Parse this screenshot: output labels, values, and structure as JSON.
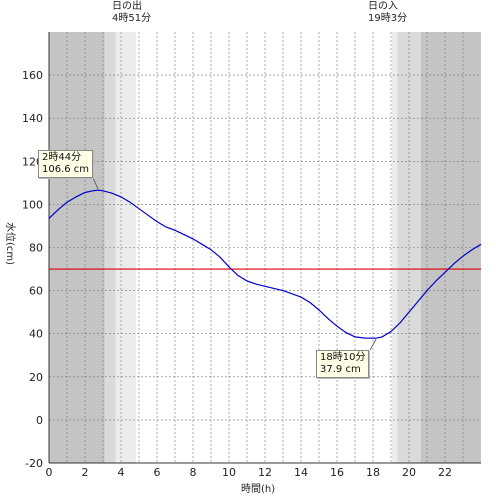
{
  "header": {
    "sunrise_label": "日の出",
    "sunrise_time": "4時51分",
    "sunset_label": "日の入",
    "sunset_time": "19時3分"
  },
  "annotations": {
    "high": {
      "time": "2時44分",
      "level": "106.6 cm"
    },
    "low": {
      "time": "18時10分",
      "level": "37.9 cm"
    }
  },
  "colors": {
    "night": "#c4c4c4",
    "twilight_dark": "#dadada",
    "twilight_light": "#ececec",
    "day": "#ffffff",
    "curve": "#0000cc",
    "reference_line": "#dd0000",
    "grid": "#777777"
  },
  "chart_data": {
    "type": "line",
    "xlabel": "時間(h)",
    "ylabel": "水位(cm)",
    "xlim": [
      0,
      24
    ],
    "ylim": [
      -20,
      180
    ],
    "x_ticks": [
      0,
      2,
      4,
      6,
      8,
      10,
      12,
      14,
      16,
      18,
      20,
      22
    ],
    "y_ticks": [
      -20,
      0,
      20,
      40,
      60,
      80,
      100,
      120,
      140,
      160
    ],
    "grid": true,
    "reference_line_y": 70,
    "sunrise_hour": 4.85,
    "sunset_hour": 19.05,
    "series": [
      {
        "x": [
          0,
          0.5,
          1,
          1.5,
          2,
          2.5,
          2.73,
          3,
          3.5,
          4,
          4.5,
          5,
          5.5,
          6,
          6.5,
          7,
          7.5,
          8,
          8.5,
          9,
          9.5,
          10,
          10.5,
          11,
          11.5,
          12,
          12.5,
          13,
          13.5,
          14,
          14.5,
          15,
          15.5,
          16,
          16.5,
          17,
          17.5,
          18,
          18.17,
          18.5,
          19,
          19.5,
          20,
          20.5,
          21,
          21.5,
          22,
          22.5,
          23,
          23.5,
          24
        ],
        "y": [
          93.5,
          97.5,
          101,
          103.5,
          105.5,
          106.4,
          106.6,
          106.3,
          105.2,
          103.5,
          101,
          98,
          95,
          92,
          89.5,
          88,
          86,
          84,
          81.5,
          79,
          75.5,
          71,
          67,
          64.5,
          63,
          62,
          61,
          60,
          58.5,
          57,
          54.5,
          51,
          47,
          43.5,
          40.5,
          38.5,
          38,
          37.9,
          37.9,
          38.5,
          41,
          45,
          50,
          55,
          60,
          64.5,
          68.5,
          72.5,
          76,
          79,
          81.5
        ]
      }
    ]
  }
}
